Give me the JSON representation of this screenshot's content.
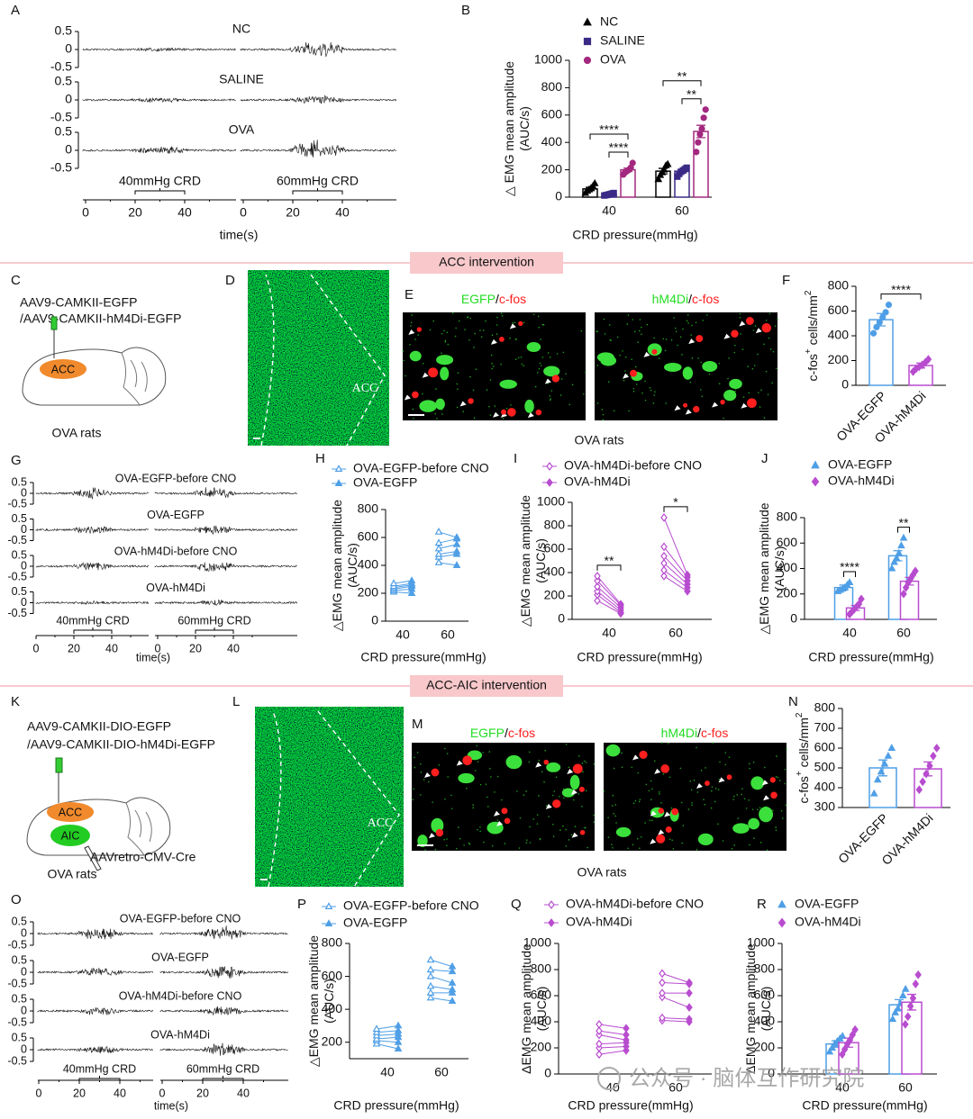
{
  "panel_labels": [
    "A",
    "B",
    "C",
    "D",
    "E",
    "F",
    "G",
    "H",
    "I",
    "J",
    "K",
    "L",
    "M",
    "N",
    "O",
    "P",
    "Q",
    "R"
  ],
  "banners": [
    "ACC intervention",
    "ACC-AIC  intervention"
  ],
  "trace_A": {
    "rows": [
      "NC",
      "SALINE",
      "OVA"
    ],
    "yticks": [
      0.5,
      0,
      -0.5
    ],
    "crd": [
      "40mmHg CRD",
      "60mmHg CRD"
    ],
    "xticks": [
      0,
      20,
      40
    ],
    "xlabel": "time(s)"
  },
  "trace_G": {
    "rows": [
      "OVA-EGFP-before CNO",
      "OVA-EGFP",
      "OVA-hM4Di-before CNO",
      "OVA-hM4Di"
    ],
    "yticks": [
      0.5,
      0,
      -0.5
    ],
    "crd": [
      "40mmHg CRD",
      "60mmHg CRD"
    ],
    "xticks": [
      0,
      20,
      40
    ],
    "xlabel": "time(s)"
  },
  "trace_O": {
    "rows": [
      "OVA-EGFP-before CNO",
      "OVA-EGFP",
      "OVA-hM4Di-before CNO",
      "OVA-hM4Di"
    ],
    "yticks": [
      0.5,
      0,
      -0.5
    ],
    "crd": [
      "40mmHg CRD",
      "60mmHg CRD"
    ],
    "xticks": [
      0,
      20,
      40
    ],
    "xlabel": "time(s)"
  },
  "diagram_C": {
    "lines": [
      "AAV9-CAMKII-EGFP",
      "/AAV9-CAMKII-hM4Di-EGFP"
    ],
    "regions": [
      "ACC"
    ],
    "caption": "OVA rats"
  },
  "diagram_K": {
    "lines": [
      "AAV9-CAMKII-DIO-EGFP",
      "/AAV9-CAMKII-DIO-hM4Di-EGFP"
    ],
    "regions": [
      "ACC",
      "AIC"
    ],
    "virus": "AAVretro-CMV-Cre",
    "caption": "OVA rats"
  },
  "image_D": {
    "region": "ACC"
  },
  "image_L": {
    "region": "ACC"
  },
  "image_E": {
    "titles": [
      [
        "EGFP",
        "/",
        "c-fos"
      ],
      [
        "hM4Di",
        "/",
        "c-fos"
      ]
    ],
    "caption": "OVA rats"
  },
  "image_M": {
    "titles": [
      [
        "EGFP",
        "/",
        "c-fos"
      ],
      [
        "hM4Di",
        "/",
        "c-fos"
      ]
    ],
    "caption": "OVA rats"
  },
  "watermark": "公众号 · 脑体互作研究院",
  "chart_data": [
    {
      "type": "bar",
      "categories": [
        "40",
        "60"
      ],
      "ylim": [
        0,
        1000
      ],
      "yticks": [
        0,
        200,
        400,
        600,
        800,
        1000
      ],
      "ylabel": [
        "△  EMG mean amplitude",
        "(AUC/s)"
      ],
      "xlabel": "CRD pressure(mmHg)",
      "series": [
        {
          "name": "NC",
          "color": "#000000",
          "marker": "triangle",
          "values": [
            60,
            190
          ],
          "errors": [
            12,
            20
          ],
          "points": [
            [
              30,
              45,
              55,
              65,
              80,
              100
            ],
            [
              130,
              160,
              180,
              200,
              230,
              240
            ]
          ]
        },
        {
          "name": "SALINE",
          "color": "#3b2a86",
          "marker": "square",
          "values": [
            20,
            190
          ],
          "errors": [
            4,
            12
          ],
          "points": [
            [
              12,
              15,
              18,
              22,
              26,
              30
            ],
            [
              150,
              170,
              185,
              195,
              205,
              215
            ]
          ]
        },
        {
          "name": "OVA",
          "color": "#a3287f",
          "marker": "circle",
          "values": [
            200,
            480
          ],
          "errors": [
            12,
            45
          ],
          "points": [
            [
              165,
              180,
              190,
              200,
              215,
              250
            ],
            [
              330,
              400,
              460,
              500,
              580,
              640
            ]
          ]
        }
      ],
      "significance": [
        {
          "text": "****",
          "category": 0,
          "between": [
            1,
            2
          ]
        },
        {
          "text": "****",
          "category": 0,
          "between": [
            0,
            2
          ]
        },
        {
          "text": "**",
          "category": 1,
          "between": [
            1,
            2
          ]
        },
        {
          "text": "**",
          "category": 1,
          "between": [
            0,
            2
          ]
        }
      ]
    },
    {
      "type": "bar",
      "categories": [
        "OVA-EGFP",
        "OVA-hM4Di"
      ],
      "values": [
        530,
        160
      ],
      "errors": [
        50,
        20
      ],
      "points": [
        [
          420,
          470,
          510,
          550,
          590,
          650
        ],
        [
          110,
          135,
          150,
          165,
          185,
          210
        ]
      ],
      "colors": [
        "#4f9fe6",
        "#b84ccf"
      ],
      "markers": [
        "circle",
        "diamond"
      ],
      "ylim": [
        0,
        800
      ],
      "yticks": [
        0,
        200,
        400,
        600,
        800
      ],
      "ylabel_parts": [
        "c-fos",
        "+",
        " cells/mm",
        "2"
      ],
      "significance": [
        {
          "text": "****",
          "between": [
            0,
            1
          ]
        }
      ]
    },
    {
      "type": "paired",
      "categories": [
        "40",
        "60"
      ],
      "ylim": [
        0,
        800
      ],
      "yticks": [
        0,
        200,
        400,
        600,
        800
      ],
      "ylabel": [
        "△EMG mean amplitude",
        "(AUC/s)"
      ],
      "xlabel": "CRD pressure(mmHg)",
      "series": [
        {
          "name": "OVA-EGFP-before CNO",
          "color": "#4f9fe6",
          "marker": "triangle",
          "filled": false,
          "values": [
            [
              210,
              220,
              230,
              240,
              250,
              270
            ],
            [
              420,
              460,
              480,
              520,
              560,
              640
            ]
          ]
        },
        {
          "name": "OVA-EGFP",
          "color": "#4f9fe6",
          "marker": "triangle",
          "filled": true,
          "values": [
            [
              200,
              230,
              250,
              260,
              270,
              290
            ],
            [
              400,
              480,
              500,
              550,
              590,
              600
            ]
          ]
        }
      ]
    },
    {
      "type": "paired",
      "categories": [
        "40",
        "60"
      ],
      "ylim": [
        0,
        1000
      ],
      "yticks": [
        0,
        200,
        400,
        600,
        800,
        1000
      ],
      "ylabel": [
        "△EMG mean amplitude",
        "(AUC/s)"
      ],
      "xlabel": "CRD pressure(mmHg)",
      "series": [
        {
          "name": "OVA-hM4Di-before CNO",
          "color": "#b84ccf",
          "marker": "diamond",
          "filled": false,
          "values": [
            [
              160,
              210,
              240,
              280,
              330,
              370
            ],
            [
              370,
              420,
              480,
              540,
              620,
              870
            ]
          ]
        },
        {
          "name": "OVA-hM4Di",
          "color": "#b84ccf",
          "marker": "diamond",
          "filled": true,
          "values": [
            [
              50,
              60,
              80,
              100,
              120,
              130
            ],
            [
              240,
              270,
              300,
              330,
              360,
              380
            ]
          ]
        }
      ],
      "significance": [
        {
          "text": "**",
          "category": 0,
          "between": [
            0,
            1
          ]
        },
        {
          "text": "*",
          "category": 1,
          "between": [
            0,
            1
          ]
        }
      ]
    },
    {
      "type": "bar",
      "categories": [
        "40",
        "60"
      ],
      "ylim": [
        0,
        800
      ],
      "yticks": [
        0,
        200,
        400,
        600,
        800
      ],
      "ylabel": [
        "△EMG mean amplitude",
        "(AUC/s)"
      ],
      "xlabel": "CRD pressure(mmHg)",
      "series": [
        {
          "name": "OVA-EGFP",
          "color": "#4f9fe6",
          "marker": "triangle",
          "values": [
            250,
            500
          ],
          "errors": [
            20,
            40
          ],
          "points": [
            [
              220,
              230,
              240,
              250,
              270,
              290
            ],
            [
              400,
              450,
              480,
              520,
              580,
              640
            ]
          ]
        },
        {
          "name": "OVA-hM4Di",
          "color": "#b84ccf",
          "marker": "diamond",
          "values": [
            90,
            300
          ],
          "errors": [
            20,
            30
          ],
          "points": [
            [
              40,
              60,
              80,
              100,
              120,
              160
            ],
            [
              200,
              250,
              290,
              320,
              350,
              380
            ]
          ]
        }
      ],
      "significance": [
        {
          "text": "****",
          "category": 0,
          "between": [
            0,
            1
          ]
        },
        {
          "text": "**",
          "category": 1,
          "between": [
            0,
            1
          ]
        }
      ]
    },
    {
      "type": "bar",
      "categories": [
        "OVA-EGFP",
        "OVA-hM4Di"
      ],
      "values": [
        500,
        495
      ],
      "errors": [
        40,
        35
      ],
      "points": [
        [
          370,
          440,
          480,
          520,
          560,
          600
        ],
        [
          390,
          430,
          470,
          510,
          560,
          600
        ]
      ],
      "colors": [
        "#4f9fe6",
        "#b84ccf"
      ],
      "markers": [
        "triangle",
        "diamond"
      ],
      "ylim": [
        300,
        800
      ],
      "yticks": [
        300,
        400,
        500,
        600,
        700,
        800
      ],
      "ylabel_parts": [
        "c-fos",
        "+",
        " cells/mm",
        "2"
      ]
    },
    {
      "type": "paired",
      "categories": [
        "40",
        "60"
      ],
      "ylim": [
        100,
        800
      ],
      "yticks": [
        200,
        400,
        600,
        800
      ],
      "ylabel": [
        "△EMG mean amplitude",
        "(AUC/s)"
      ],
      "xlabel": "CRD pressure(mmHg)",
      "series": [
        {
          "name": "OVA-EGFP-before CNO",
          "color": "#4f9fe6",
          "marker": "triangle",
          "filled": false,
          "values": [
            [
              190,
              210,
              220,
              240,
              260,
              280
            ],
            [
              470,
              500,
              540,
              600,
              640,
              700
            ]
          ]
        },
        {
          "name": "OVA-EGFP",
          "color": "#4f9fe6",
          "marker": "triangle",
          "filled": true,
          "values": [
            [
              160,
              200,
              230,
              250,
              270,
              300
            ],
            [
              450,
              500,
              520,
              560,
              630,
              660
            ]
          ]
        }
      ]
    },
    {
      "type": "paired",
      "categories": [
        "40",
        "60"
      ],
      "ylim": [
        0,
        1000
      ],
      "yticks": [
        0,
        200,
        400,
        600,
        800,
        1000
      ],
      "ylabel": [
        "ΔEMG mean amplitude",
        "(AUC/s)"
      ],
      "xlabel": "CRD pressure(mmHg)",
      "series": [
        {
          "name": "OVA-hM4Di-before CNO",
          "color": "#b84ccf",
          "marker": "diamond",
          "filled": false,
          "values": [
            [
              150,
              200,
              230,
              300,
              330,
              380
            ],
            [
              410,
              430,
              590,
              620,
              700,
              770
            ]
          ]
        },
        {
          "name": "OVA-hM4Di",
          "color": "#b84ccf",
          "marker": "diamond",
          "filled": true,
          "values": [
            [
              180,
              210,
              240,
              260,
              300,
              350
            ],
            [
              400,
              420,
              510,
              620,
              690,
              700
            ]
          ]
        }
      ]
    },
    {
      "type": "bar",
      "categories": [
        "40",
        "60"
      ],
      "ylim": [
        0,
        1000
      ],
      "yticks": [
        0,
        200,
        400,
        600,
        800,
        1000
      ],
      "ylabel": [
        "ΔEMG mean amplitude",
        "(AUC/s)"
      ],
      "xlabel": "CRD pressure(mmHg)",
      "series": [
        {
          "name": "OVA-EGFP",
          "color": "#4f9fe6",
          "marker": "triangle",
          "values": [
            230,
            530
          ],
          "errors": [
            25,
            40
          ],
          "points": [
            [
              170,
              200,
              230,
              250,
              270,
              290
            ],
            [
              420,
              470,
              500,
              540,
              600,
              650
            ]
          ]
        },
        {
          "name": "OVA-hM4Di",
          "color": "#b84ccf",
          "marker": "diamond",
          "values": [
            240,
            550
          ],
          "errors": [
            35,
            60
          ],
          "points": [
            [
              150,
              190,
              230,
              260,
              300,
              340
            ],
            [
              380,
              440,
              520,
              580,
              690,
              760
            ]
          ]
        }
      ]
    }
  ]
}
